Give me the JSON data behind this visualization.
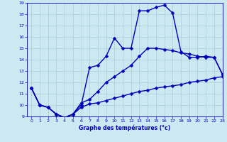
{
  "title": "Graphe des températures (°c)",
  "bg_color": "#cce8f0",
  "line_color": "#0000bb",
  "grid_color": "#aaccd8",
  "xlim": [
    -0.5,
    23
  ],
  "ylim": [
    9,
    19
  ],
  "xticks": [
    0,
    1,
    2,
    3,
    4,
    5,
    6,
    7,
    8,
    9,
    10,
    11,
    12,
    13,
    14,
    15,
    16,
    17,
    18,
    19,
    20,
    21,
    22,
    23
  ],
  "yticks": [
    9,
    10,
    11,
    12,
    13,
    14,
    15,
    16,
    17,
    18,
    19
  ],
  "series1_x": [
    0,
    1,
    2,
    3,
    4,
    5,
    6,
    7,
    8,
    9,
    10,
    11,
    12,
    13,
    14,
    15,
    16,
    17,
    18,
    19,
    20,
    21,
    22,
    23
  ],
  "series1_y": [
    11.5,
    10.0,
    9.8,
    9.2,
    8.9,
    9.2,
    9.8,
    10.1,
    10.2,
    10.4,
    10.6,
    10.8,
    11.0,
    11.2,
    11.3,
    11.5,
    11.6,
    11.7,
    11.8,
    12.0,
    12.1,
    12.2,
    12.4,
    12.5
  ],
  "series2_x": [
    0,
    1,
    2,
    3,
    4,
    5,
    6,
    7,
    8,
    9,
    10,
    11,
    12,
    13,
    14,
    15,
    16,
    17,
    18,
    19,
    20,
    21,
    22,
    23
  ],
  "series2_y": [
    11.5,
    10.0,
    9.8,
    9.2,
    8.9,
    9.2,
    10.2,
    10.5,
    11.2,
    12.0,
    12.5,
    13.0,
    13.5,
    14.3,
    15.0,
    15.0,
    14.9,
    14.8,
    14.6,
    14.5,
    14.3,
    14.2,
    14.2,
    12.7
  ],
  "series3_x": [
    0,
    1,
    2,
    3,
    4,
    5,
    6,
    7,
    8,
    9,
    10,
    11,
    12,
    13,
    14,
    15,
    16,
    17,
    18,
    19,
    20,
    21,
    22,
    23
  ],
  "series3_y": [
    11.5,
    10.0,
    9.8,
    9.2,
    8.9,
    9.2,
    10.0,
    13.3,
    13.5,
    14.3,
    15.9,
    15.0,
    15.0,
    18.3,
    18.3,
    18.6,
    18.8,
    18.1,
    14.7,
    14.2,
    14.2,
    14.3,
    14.2,
    12.7
  ],
  "markersize": 2.5,
  "linewidth": 1.0
}
